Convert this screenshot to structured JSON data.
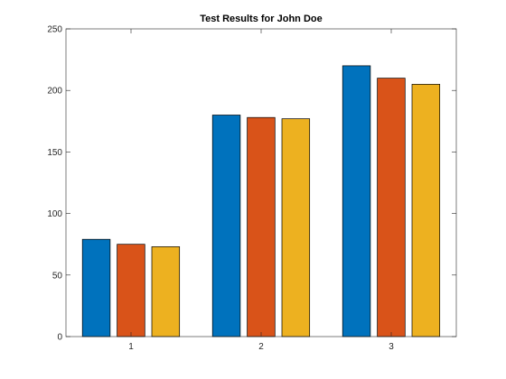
{
  "chart_data": {
    "type": "bar",
    "title": "Test Results for John Doe",
    "xlabel": "",
    "ylabel": "",
    "categories": [
      "1",
      "2",
      "3"
    ],
    "series": [
      {
        "values": [
          79,
          180,
          220
        ],
        "color": "#0072BD"
      },
      {
        "values": [
          75,
          178,
          210
        ],
        "color": "#D95319"
      },
      {
        "values": [
          73,
          177,
          205
        ],
        "color": "#EDB120"
      }
    ],
    "ylim": [
      0,
      250
    ],
    "yticks": [
      0,
      50,
      100,
      150,
      200,
      250
    ],
    "grid": false,
    "box": true
  }
}
